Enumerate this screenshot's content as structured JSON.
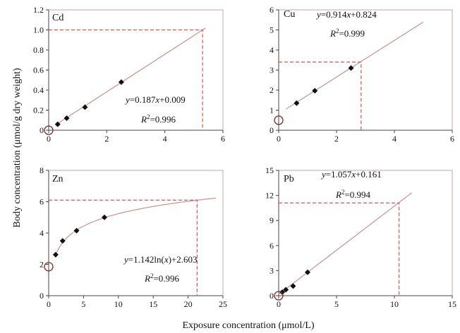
{
  "figure": {
    "ylabel": "Body concentration (μmol/g dry weight)",
    "xlabel": "Exposure concentration (μmol/L)"
  },
  "chart_data": [
    {
      "type": "scatter",
      "label": "Cd",
      "xlim": [
        0,
        6
      ],
      "ylim": [
        0,
        1.2
      ],
      "xticks": [
        "0",
        "2",
        "4",
        "6"
      ],
      "yticks": [
        "0",
        "0.2",
        "0.4",
        "0.6",
        "0.8",
        "1.0",
        "1.2"
      ],
      "points": [
        [
          0.31,
          0.06
        ],
        [
          0.62,
          0.12
        ],
        [
          1.25,
          0.23
        ],
        [
          2.5,
          0.48
        ]
      ],
      "origin_marker": [
        0,
        0
      ],
      "fit": {
        "kind": "linear",
        "slope": 0.187,
        "intercept": 0.009,
        "xrange": [
          0.35,
          5.4
        ]
      },
      "guide": {
        "x": 5.3,
        "y": 1.0
      },
      "equation": {
        "y_part": "y",
        "rhs_prefix": "=0.187",
        "x_part": "x",
        "rhs_suffix": "+0.009"
      },
      "r2": {
        "R": "R",
        "sup": "2",
        "value": "=0.996"
      }
    },
    {
      "type": "scatter",
      "label": "Cu",
      "xlim": [
        0,
        6
      ],
      "ylim": [
        0,
        6
      ],
      "xticks": [
        "0",
        "2",
        "4",
        "6"
      ],
      "yticks": [
        "0",
        "1",
        "2",
        "3",
        "4",
        "5",
        "6"
      ],
      "points": [
        [
          0.62,
          1.35
        ],
        [
          1.25,
          1.97
        ],
        [
          2.5,
          3.1
        ]
      ],
      "origin_marker": [
        0,
        0.5
      ],
      "fit": {
        "kind": "linear",
        "slope": 0.914,
        "intercept": 0.824,
        "xrange": [
          0.25,
          5.0
        ]
      },
      "guide": {
        "x": 2.85,
        "y": 3.4
      },
      "equation": {
        "y_part": "y",
        "rhs_prefix": "=0.914",
        "x_part": "x",
        "rhs_suffix": "+0.824"
      },
      "r2": {
        "R": "R",
        "sup": "2",
        "value": "=0.999"
      }
    },
    {
      "type": "scatter",
      "label": "Zn",
      "xlim": [
        0,
        25
      ],
      "ylim": [
        0,
        8
      ],
      "xticks": [
        "0",
        "5",
        "10",
        "15",
        "20",
        "25"
      ],
      "yticks": [
        "0",
        "2",
        "4",
        "6",
        "8"
      ],
      "points": [
        [
          1,
          2.62
        ],
        [
          2,
          3.5
        ],
        [
          4,
          4.15
        ],
        [
          8,
          5.0
        ]
      ],
      "origin_marker": [
        0,
        1.85
      ],
      "fit": {
        "kind": "log",
        "a": 1.142,
        "b": 2.603,
        "xrange": [
          1,
          24
        ]
      },
      "guide": {
        "x": 21.3,
        "y": 6.1
      },
      "equation": {
        "y_part": "y",
        "rhs_prefix": "=1.142ln(",
        "x_part": "x",
        "rhs_suffix": ")+2.603"
      },
      "r2": {
        "R": "R",
        "sup": "2",
        "value": "=0.996"
      }
    },
    {
      "type": "scatter",
      "label": "Pb",
      "xlim": [
        0,
        15
      ],
      "ylim": [
        0,
        15
      ],
      "xticks": [
        "0",
        "5",
        "10",
        "15"
      ],
      "yticks": [
        "0",
        "3",
        "6",
        "9",
        "12",
        "15"
      ],
      "points": [
        [
          0.31,
          0.42
        ],
        [
          0.62,
          0.72
        ],
        [
          1.25,
          1.15
        ],
        [
          2.5,
          2.8
        ]
      ],
      "origin_marker": [
        0,
        0
      ],
      "fit": {
        "kind": "linear",
        "slope": 1.057,
        "intercept": 0.161,
        "xrange": [
          0,
          11.5
        ]
      },
      "guide": {
        "x": 10.4,
        "y": 11.1
      },
      "equation": {
        "y_part": "y",
        "rhs_prefix": "=1.057",
        "x_part": "x",
        "rhs_suffix": "+0.161"
      },
      "r2": {
        "R": "R",
        "sup": "2",
        "value": "=0.994"
      }
    }
  ]
}
